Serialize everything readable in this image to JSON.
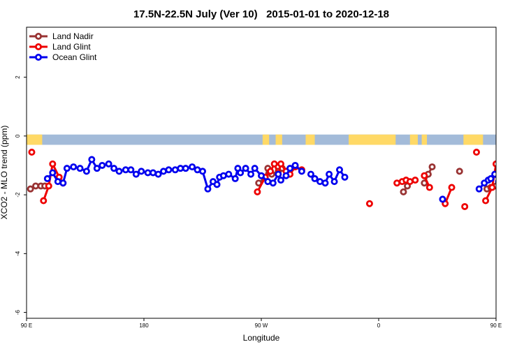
{
  "chart_data": {
    "type": "line",
    "title": "17.5N-22.5N July (Ver 10)   2015-01-01 to 2020-12-18",
    "xlabel": "Longitude",
    "ylabel": "XCO2 - MLO trend (ppm)",
    "xlim": [
      90,
      450
    ],
    "ylim": [
      -6.2,
      3.7
    ],
    "x_ticks": [
      {
        "value": 90,
        "label": "90 E"
      },
      {
        "value": 180,
        "label": "180"
      },
      {
        "value": 270,
        "label": "90 W"
      },
      {
        "value": 360,
        "label": "0"
      },
      {
        "value": 450,
        "label": "90 E"
      },
      {
        "value": 540,
        "label": "180"
      }
    ],
    "y_ticks": [
      {
        "value": -6,
        "label": "-6"
      },
      {
        "value": -4,
        "label": "-4"
      },
      {
        "value": -2,
        "label": "-2"
      },
      {
        "value": 0,
        "label": "0"
      },
      {
        "value": 2,
        "label": "2"
      }
    ],
    "colors": {
      "ocean_band": "#a3bbd9",
      "land_band": "#ffd966"
    },
    "land_mask": [
      [
        90,
        102
      ],
      [
        271,
        276
      ],
      [
        281,
        286
      ],
      [
        304,
        311
      ],
      [
        337,
        373
      ],
      [
        384,
        390
      ],
      [
        393,
        397
      ],
      [
        425,
        440
      ]
    ],
    "legend": {
      "position": "top-left"
    },
    "series": [
      {
        "name": "Land Nadir",
        "color": "#993333",
        "points": [
          [
            93,
            -1.8
          ],
          [
            97,
            -1.7
          ],
          [
            101,
            -1.7
          ],
          [
            104,
            -1.7
          ],
          [
            268,
            -1.6
          ],
          [
            273,
            -1.4
          ],
          [
            275,
            -1.1
          ],
          [
            278,
            -1.3
          ],
          [
            283,
            -1.2
          ],
          [
            286,
            -1.1
          ],
          [
            379,
            -1.9
          ],
          [
            382,
            -1.7
          ],
          [
            395,
            -1.6
          ],
          [
            398,
            -1.3
          ],
          [
            401,
            -1.05
          ],
          [
            422,
            -1.2
          ],
          [
            443,
            -1.8
          ],
          [
            446,
            -1.75
          ],
          [
            450,
            -1.7
          ],
          [
            453,
            -1.7
          ]
        ]
      },
      {
        "name": "Land Glint",
        "color": "#ee0000",
        "points": [
          [
            94,
            -0.55
          ],
          [
            103,
            -2.2
          ],
          [
            107,
            -1.7
          ],
          [
            110,
            -0.95
          ],
          [
            115,
            -1.4
          ],
          [
            118,
            -1.6
          ],
          [
            267,
            -1.9
          ],
          [
            273,
            -1.4
          ],
          [
            277,
            -1.2
          ],
          [
            280,
            -0.95
          ],
          [
            283,
            -1.3
          ],
          [
            285,
            -0.95
          ],
          [
            289,
            -1.2
          ],
          [
            292,
            -1.3
          ],
          [
            296,
            -1.05
          ],
          [
            301,
            -1.15
          ],
          [
            353,
            -2.3
          ],
          [
            374,
            -1.6
          ],
          [
            378,
            -1.55
          ],
          [
            381,
            -1.5
          ],
          [
            384,
            -1.55
          ],
          [
            388,
            -1.5
          ],
          [
            395,
            -1.35
          ],
          [
            399,
            -1.75
          ],
          [
            411,
            -2.3
          ],
          [
            416,
            -1.75
          ],
          [
            426,
            -2.4
          ],
          [
            435,
            -0.55
          ],
          [
            442,
            -2.2
          ],
          [
            447,
            -1.75
          ],
          [
            450,
            -0.95
          ],
          [
            456,
            -1.65
          ]
        ]
      },
      {
        "name": "Ocean Glint",
        "color": "#0000ee",
        "points": [
          [
            106,
            -1.45
          ],
          [
            110,
            -1.25
          ],
          [
            114,
            -1.55
          ],
          [
            118,
            -1.6
          ],
          [
            121,
            -1.1
          ],
          [
            126,
            -1.05
          ],
          [
            131,
            -1.1
          ],
          [
            136,
            -1.2
          ],
          [
            140,
            -0.8
          ],
          [
            144,
            -1.1
          ],
          [
            148,
            -1.0
          ],
          [
            153,
            -0.95
          ],
          [
            157,
            -1.1
          ],
          [
            161,
            -1.2
          ],
          [
            166,
            -1.15
          ],
          [
            170,
            -1.15
          ],
          [
            174,
            -1.3
          ],
          [
            178,
            -1.2
          ],
          [
            183,
            -1.25
          ],
          [
            187,
            -1.25
          ],
          [
            191,
            -1.3
          ],
          [
            195,
            -1.2
          ],
          [
            199,
            -1.15
          ],
          [
            204,
            -1.15
          ],
          [
            208,
            -1.1
          ],
          [
            212,
            -1.1
          ],
          [
            217,
            -1.05
          ],
          [
            221,
            -1.15
          ],
          [
            225,
            -1.2
          ],
          [
            229,
            -1.8
          ],
          [
            233,
            -1.55
          ],
          [
            236,
            -1.65
          ],
          [
            238,
            -1.4
          ],
          [
            241,
            -1.35
          ],
          [
            245,
            -1.3
          ],
          [
            250,
            -1.45
          ],
          [
            252,
            -1.1
          ],
          [
            254,
            -1.25
          ],
          [
            258,
            -1.1
          ],
          [
            262,
            -1.3
          ],
          [
            265,
            -1.1
          ],
          [
            270,
            -1.35
          ],
          [
            275,
            -1.55
          ],
          [
            279,
            -1.6
          ],
          [
            283,
            -1.3
          ],
          [
            285,
            -1.5
          ],
          [
            289,
            -1.35
          ],
          [
            292,
            -1.1
          ],
          [
            296,
            -1.0
          ],
          [
            301,
            -1.2
          ],
          [
            308,
            -1.3
          ],
          [
            311,
            -1.45
          ],
          [
            315,
            -1.55
          ],
          [
            319,
            -1.6
          ],
          [
            322,
            -1.3
          ],
          [
            326,
            -1.55
          ],
          [
            330,
            -1.15
          ],
          [
            334,
            -1.4
          ],
          [
            409,
            -2.15
          ],
          [
            437,
            -1.8
          ],
          [
            441,
            -1.6
          ],
          [
            444,
            -1.5
          ],
          [
            446,
            -1.45
          ],
          [
            449,
            -1.3
          ],
          [
            452,
            -1.55
          ],
          [
            456,
            -1.6
          ],
          [
            461,
            -1.1
          ],
          [
            465,
            -1.1
          ],
          [
            469,
            -1.15
          ],
          [
            473,
            -1.2
          ],
          [
            476,
            -0.8
          ],
          [
            479,
            -1.15
          ],
          [
            483,
            -1.05
          ],
          [
            486,
            -0.95
          ],
          [
            490,
            -1.1
          ],
          [
            494,
            -1.2
          ],
          [
            498,
            -1.15
          ]
        ]
      }
    ]
  }
}
